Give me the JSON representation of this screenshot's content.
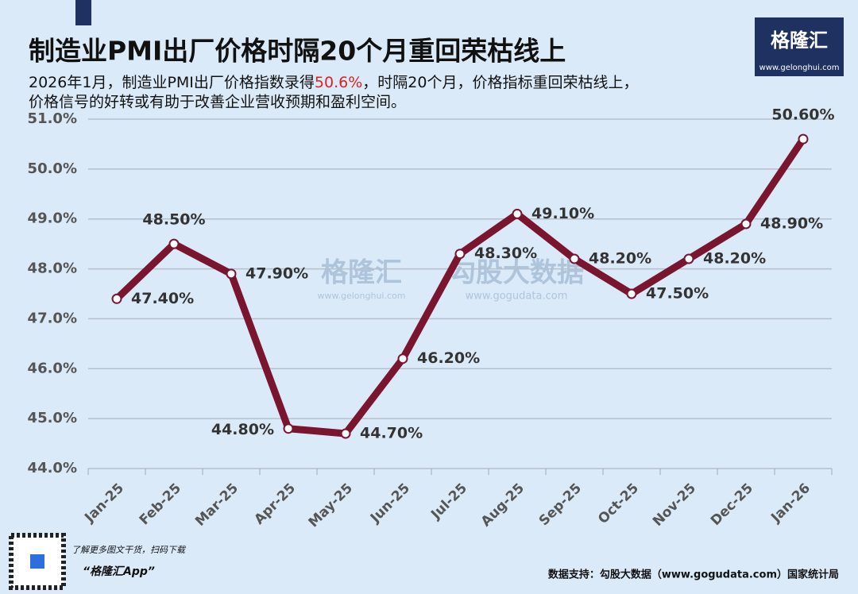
{
  "chart_data": {
    "type": "line",
    "title": "制造业PMI出厂价格时隔20个月重回荣枯线上",
    "subtitle": [
      "2026年1月，制造业PMI出厂价格指数录得",
      "50.6%",
      "，时隔20个月，价格指标重回荣枯线上，",
      "价格信号的好转或有助于改善企业营收预期和盈利空间。"
    ],
    "categories": [
      "Jan-25",
      "Feb-25",
      "Mar-25",
      "Apr-25",
      "May-25",
      "Jun-25",
      "Jul-25",
      "Aug-25",
      "Sep-25",
      "Oct-25",
      "Nov-25",
      "Dec-25",
      "Jan-26"
    ],
    "values": [
      47.4,
      48.5,
      47.9,
      44.8,
      44.7,
      46.2,
      48.3,
      49.1,
      48.2,
      47.5,
      48.2,
      48.9,
      50.6
    ],
    "value_labels": [
      "47.40%",
      "48.50%",
      "47.90%",
      "44.80%",
      "44.70%",
      "46.20%",
      "48.30%",
      "49.10%",
      "48.20%",
      "47.50%",
      "48.20%",
      "48.90%",
      "50.60%"
    ],
    "color": "#7a1530",
    "ylim": [
      44,
      51
    ],
    "yticks": [
      {
        "value": 44,
        "label": "44.0%"
      },
      {
        "value": 45,
        "label": "45.0%"
      },
      {
        "value": 46,
        "label": "46.0%"
      },
      {
        "value": 47,
        "label": "47.0%"
      },
      {
        "value": 48,
        "label": "48.0%"
      },
      {
        "value": 49,
        "label": "49.0%"
      },
      {
        "value": 50,
        "label": "50.0%"
      },
      {
        "value": 51,
        "label": "51.0%"
      }
    ],
    "grid": true,
    "logo": {
      "name": "格隆汇",
      "url": "www.gelonghui.com"
    },
    "watermark": {
      "left": "格隆汇",
      "left_url": "www.gelonghui.com",
      "right": "勾股大数据",
      "right_url": "www.gogudata.com"
    },
    "footer": {
      "qr_note": "了解更多图文干货，扫码下载",
      "app": "“格隆汇App”",
      "source": "数据支持：勾股大数据（www.gogudata.com）国家统计局"
    }
  }
}
